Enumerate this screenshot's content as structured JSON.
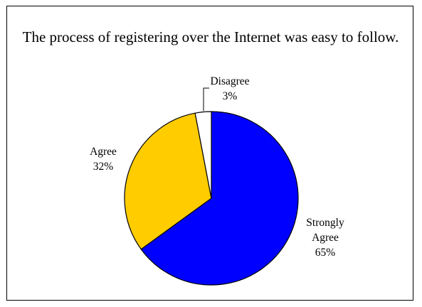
{
  "chart_data": {
    "type": "pie",
    "title": "The process of registering over the Internet was easy to follow.",
    "slices": [
      {
        "name": "Strongly Agree",
        "label_lines": [
          "Strongly",
          "Agree"
        ],
        "value": 65,
        "percent_label": "65%",
        "color": "#0000FF"
      },
      {
        "name": "Agree",
        "label_lines": [
          "Agree"
        ],
        "value": 32,
        "percent_label": "32%",
        "color": "#FFCC00"
      },
      {
        "name": "Disagree",
        "label_lines": [
          "Disagree"
        ],
        "value": 3,
        "percent_label": "3%",
        "color": "#FFFFFF"
      }
    ],
    "legend": "none"
  }
}
